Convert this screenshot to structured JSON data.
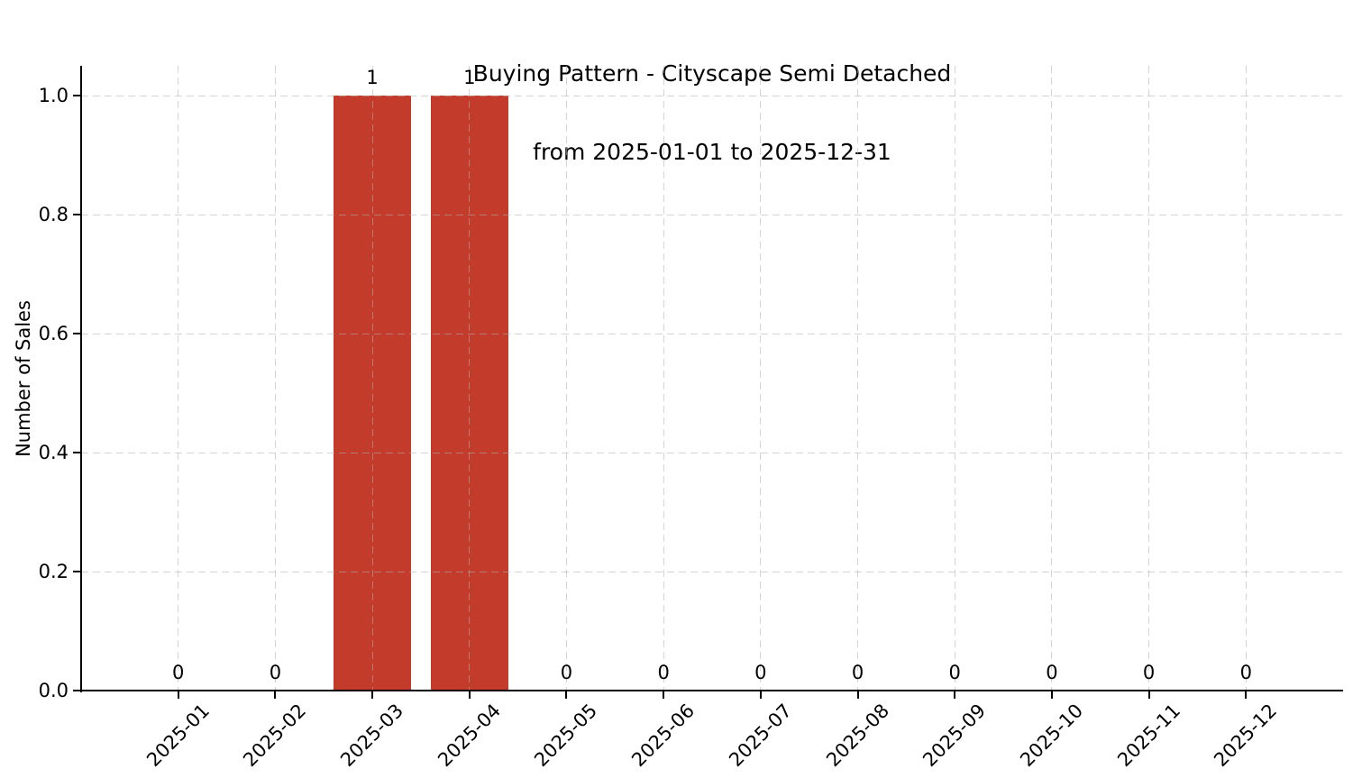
{
  "chart_data": {
    "type": "bar",
    "title": "Buying Pattern - Cityscape Semi Detached",
    "subtitle": "from 2025-01-01 to 2025-12-31",
    "xlabel": "",
    "ylabel": "Number of Sales",
    "categories": [
      "2025-01",
      "2025-02",
      "2025-03",
      "2025-04",
      "2025-05",
      "2025-06",
      "2025-07",
      "2025-08",
      "2025-09",
      "2025-10",
      "2025-11",
      "2025-12"
    ],
    "values": [
      0,
      0,
      1,
      1,
      0,
      0,
      0,
      0,
      0,
      0,
      0,
      0
    ],
    "bar_value_labels": [
      "0",
      "0",
      "1",
      "1",
      "0",
      "0",
      "0",
      "0",
      "0",
      "0",
      "0",
      "0"
    ],
    "yticks": [
      0.0,
      0.2,
      0.4,
      0.6,
      0.8,
      1.0
    ],
    "ytick_labels": [
      "0.0",
      "0.2",
      "0.4",
      "0.6",
      "0.8",
      "1.0"
    ],
    "ylim": [
      0,
      1.05
    ],
    "grid": true,
    "grid_style": "dashed",
    "legend_position": "none",
    "bar_color": "#c33b2b",
    "grid_color": "#b0b0b0",
    "axis_color": "#000000",
    "text_color": "#000000",
    "background_color": "#ffffff"
  }
}
